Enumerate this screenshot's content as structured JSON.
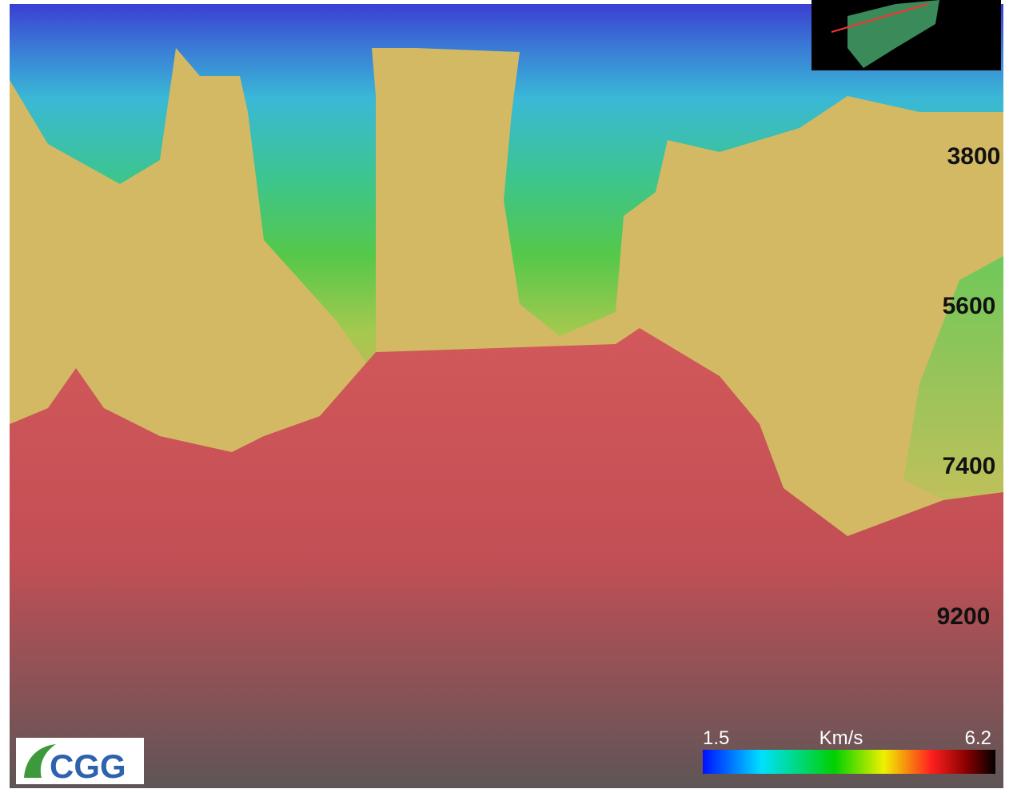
{
  "depth_labels": [
    "3800",
    "5600",
    "7400",
    "9200"
  ],
  "colorbar": {
    "min_label": "1.5",
    "unit": "Km/s",
    "max_label": "6.2"
  },
  "logo": {
    "text": "CGG"
  }
}
